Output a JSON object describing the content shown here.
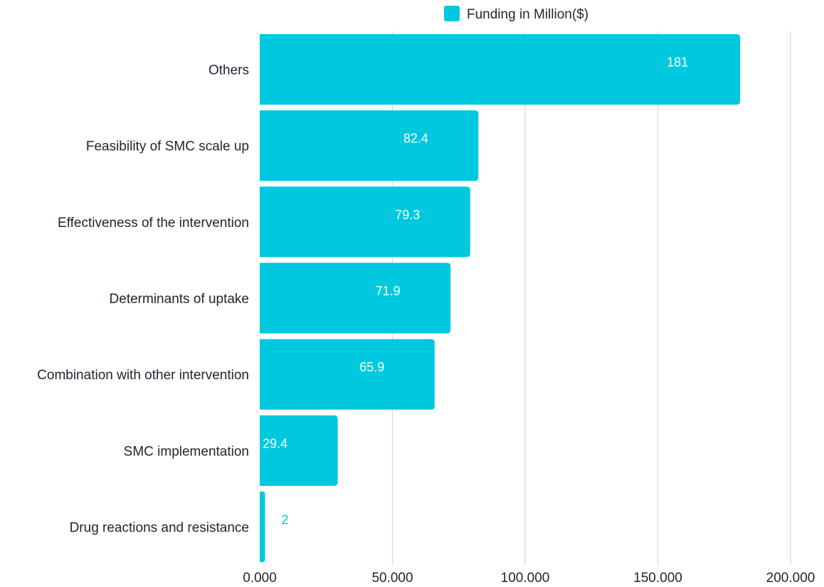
{
  "chart_data": {
    "type": "bar",
    "orientation": "horizontal",
    "title": "",
    "xlabel": "",
    "ylabel": "",
    "categories": [
      "Others",
      "Feasibility of SMC scale up",
      "Effectiveness of the intervention",
      "Determinants of uptake",
      "Combination with other intervention",
      "SMC implementation",
      "Drug reactions and resistance"
    ],
    "series": [
      {
        "name": "Funding in Million($)",
        "values": [
          181,
          82.4,
          79.3,
          71.9,
          65.9,
          29.4,
          2
        ],
        "color": "#00c8df"
      }
    ],
    "data_labels": [
      "181",
      "82.4",
      "79.3",
      "71.9",
      "65.9",
      "29.4",
      "2"
    ],
    "xlim": [
      0,
      200
    ],
    "xticks": [
      0,
      50,
      100,
      150,
      200
    ],
    "xtick_labels": [
      "0.000",
      "50.000",
      "100.000",
      "150.000",
      "200.000"
    ],
    "grid": true,
    "legend": "top-center",
    "colors": {
      "bar": "#00c8df",
      "label_inside": "#ffffff",
      "label_outside": "#00c8df",
      "grid": "#d9d9d9",
      "text": "#1f2430"
    }
  }
}
